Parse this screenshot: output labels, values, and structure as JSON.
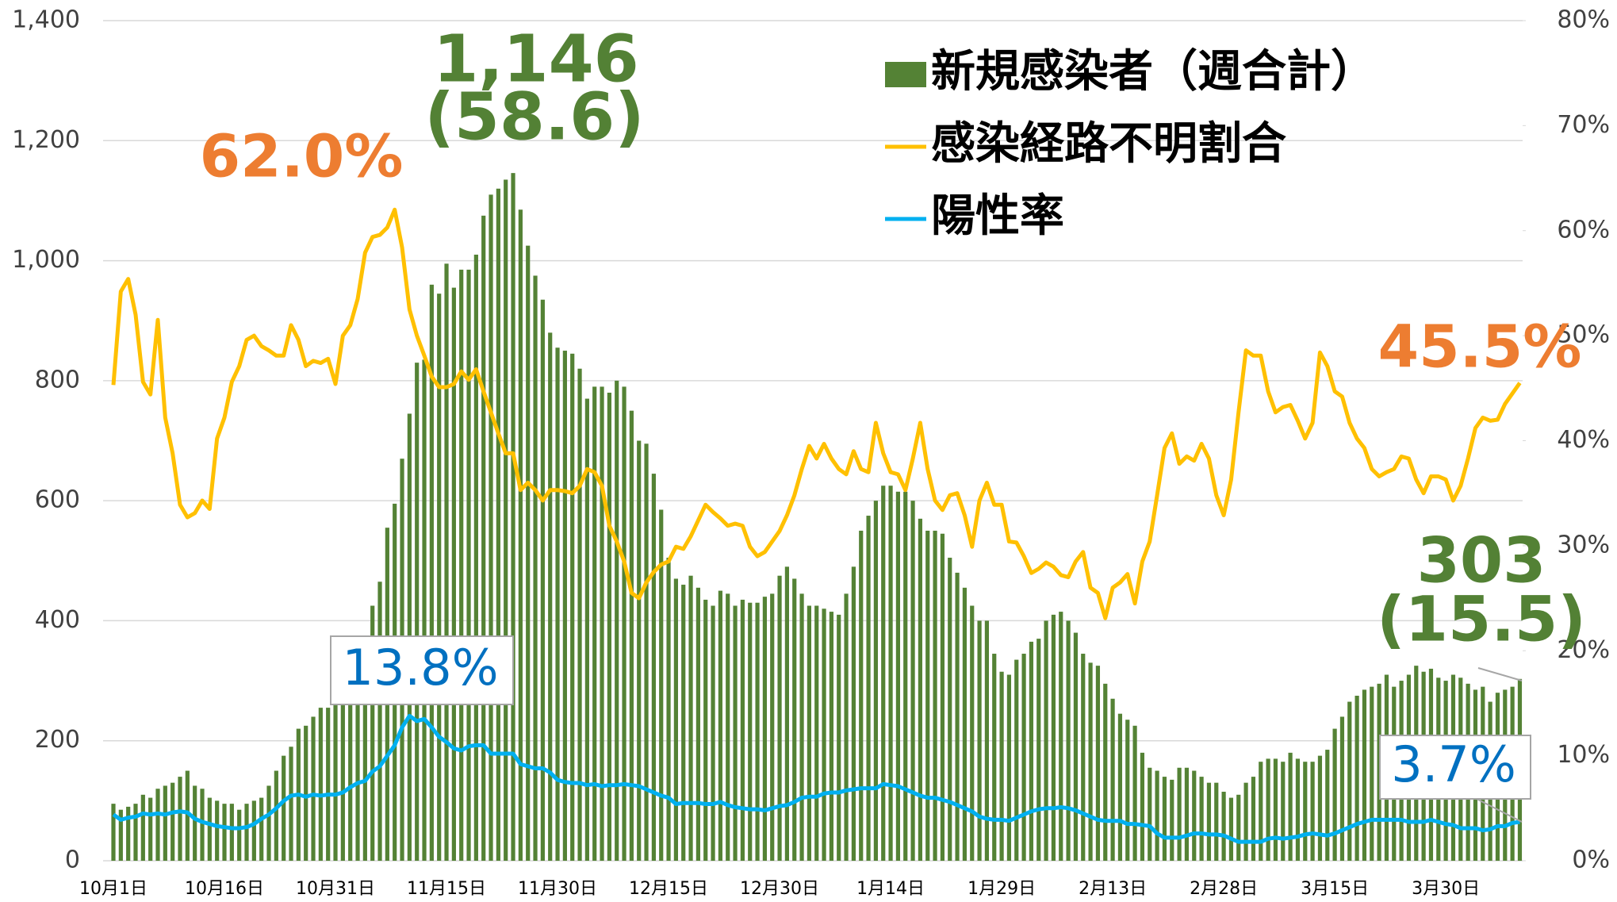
{
  "chart_data": {
    "type": "bar-line",
    "categories": [
      "10月1日",
      null,
      null,
      null,
      null,
      null,
      null,
      null,
      null,
      null,
      null,
      null,
      null,
      null,
      null,
      "10月16日",
      null,
      null,
      null,
      null,
      null,
      null,
      null,
      null,
      null,
      null,
      null,
      null,
      null,
      null,
      "10月31日",
      null,
      null,
      null,
      null,
      null,
      null,
      null,
      null,
      null,
      null,
      null,
      null,
      null,
      null,
      "11月15日",
      null,
      null,
      null,
      null,
      null,
      null,
      null,
      null,
      null,
      null,
      null,
      null,
      null,
      null,
      "11月30日",
      null,
      null,
      null,
      null,
      null,
      null,
      null,
      null,
      null,
      null,
      null,
      null,
      null,
      null,
      "12月15日",
      null,
      null,
      null,
      null,
      null,
      null,
      null,
      null,
      null,
      null,
      null,
      null,
      null,
      null,
      "12月30日",
      null,
      null,
      null,
      null,
      null,
      null,
      null,
      null,
      null,
      null,
      null,
      null,
      null,
      null,
      "1月14日",
      null,
      null,
      null,
      null,
      null,
      null,
      null,
      null,
      null,
      null,
      null,
      null,
      null,
      null,
      "1月29日",
      null,
      null,
      null,
      null,
      null,
      null,
      null,
      null,
      null,
      null,
      null,
      null,
      null,
      null,
      "2月13日",
      null,
      null,
      null,
      null,
      null,
      null,
      null,
      null,
      null,
      null,
      null,
      null,
      null,
      null,
      "2月28日",
      null,
      null,
      null,
      null,
      null,
      null,
      null,
      null,
      null,
      null,
      null,
      null,
      null,
      null,
      "3月15日",
      null,
      null,
      null,
      null,
      null,
      null,
      null,
      null,
      null,
      null,
      null,
      null,
      null,
      null,
      "3月30日",
      null,
      null,
      null,
      null,
      null,
      null,
      null,
      null,
      null,
      null
    ],
    "series": [
      {
        "name": "新規感染者（週合計）",
        "kind": "bar",
        "color": "#548235",
        "values": [
          95,
          85,
          90,
          95,
          110,
          105,
          120,
          125,
          130,
          140,
          150,
          125,
          120,
          105,
          100,
          95,
          95,
          85,
          95,
          100,
          105,
          125,
          150,
          175,
          190,
          220,
          225,
          240,
          255,
          255,
          265,
          280,
          300,
          330,
          370,
          425,
          465,
          555,
          595,
          670,
          745,
          830,
          835,
          960,
          945,
          995,
          955,
          985,
          985,
          1010,
          1075,
          1110,
          1120,
          1135,
          1146,
          1085,
          1025,
          975,
          935,
          880,
          855,
          850,
          845,
          820,
          770,
          790,
          790,
          780,
          800,
          790,
          750,
          700,
          695,
          645,
          585,
          505,
          470,
          460,
          475,
          455,
          435,
          425,
          450,
          445,
          425,
          435,
          430,
          430,
          440,
          445,
          475,
          490,
          470,
          445,
          425,
          425,
          420,
          415,
          410,
          445,
          490,
          550,
          575,
          600,
          625,
          625,
          615,
          615,
          600,
          570,
          550,
          550,
          545,
          505,
          480,
          455,
          425,
          400,
          400,
          345,
          315,
          310,
          335,
          345,
          365,
          370,
          400,
          410,
          415,
          400,
          380,
          345,
          330,
          325,
          295,
          270,
          245,
          235,
          225,
          180,
          155,
          150,
          140,
          135,
          155,
          155,
          150,
          140,
          130,
          130,
          115,
          105,
          110,
          130,
          140,
          165,
          170,
          170,
          165,
          180,
          170,
          165,
          165,
          175,
          185,
          220,
          240,
          265,
          275,
          285,
          290,
          295,
          310,
          290,
          300,
          310,
          325,
          315,
          320,
          305,
          300,
          310,
          305,
          295,
          285,
          290,
          265,
          280,
          285,
          290,
          303
        ]
      },
      {
        "name": "感染経路不明割合",
        "kind": "line",
        "axis": "y2",
        "color": "#FFC000",
        "values": [
          45.3,
          54.2,
          55.4,
          52,
          45.6,
          44.4,
          51.5,
          42.2,
          38.8,
          33.9,
          32.7,
          33.1,
          34.3,
          33.5,
          40.2,
          42.2,
          45.6,
          47.1,
          49.6,
          50,
          49,
          48.6,
          48.1,
          48.1,
          51,
          49.6,
          47.1,
          47.6,
          47.4,
          47.8,
          45.4,
          50,
          51,
          53.5,
          57.9,
          59.4,
          59.6,
          60.3,
          62.0,
          58.4,
          52.5,
          50,
          48.1,
          46.1,
          45.1,
          45.1,
          45.4,
          46.6,
          45.8,
          46.8,
          44.7,
          42.7,
          40.7,
          38.8,
          38.8,
          35.3,
          36,
          35.3,
          34.3,
          35.3,
          35.3,
          35.2,
          35,
          35.7,
          37.3,
          37,
          35.7,
          31.9,
          30.4,
          28.5,
          25.5,
          25,
          26.5,
          27.5,
          28.2,
          28.5,
          29.9,
          29.7,
          30.9,
          32.4,
          33.9,
          33.2,
          32.6,
          31.9,
          32.1,
          31.9,
          29.9,
          29,
          29.4,
          30.4,
          31.4,
          32.9,
          34.8,
          37.3,
          39.5,
          38.3,
          39.7,
          38.3,
          37.3,
          36.8,
          39,
          37.3,
          37,
          41.7,
          38.8,
          37,
          36.8,
          35.3,
          38.3,
          41.7,
          37.3,
          34.3,
          33.4,
          34.8,
          35,
          32.9,
          29.9,
          34.3,
          36,
          33.9,
          33.9,
          30.4,
          30.3,
          29,
          27.4,
          27.8,
          28.4,
          28,
          27.2,
          27,
          28.5,
          29.4,
          26,
          25.5,
          23.1,
          26,
          26.5,
          27.3,
          24.5,
          28.5,
          30.4,
          34.8,
          39.3,
          40.7,
          37.8,
          38.5,
          38.1,
          39.7,
          38.3,
          34.8,
          32.9,
          36.3,
          42.7,
          48.6,
          48.1,
          48.1,
          44.7,
          42.7,
          43.2,
          43.4,
          41.9,
          40.2,
          41.7,
          48.4,
          47.1,
          44.7,
          44.2,
          41.7,
          40.2,
          39.3,
          37.3,
          36.6,
          37,
          37.3,
          38.5,
          38.3,
          36.3,
          35,
          36.6,
          36.6,
          36.3,
          34.3,
          35.7,
          38.3,
          41.2,
          42.2,
          41.9,
          42,
          43.5,
          44.5,
          45.5
        ]
      },
      {
        "name": "陽性率",
        "kind": "line",
        "axis": "y2",
        "color": "#00B0F0",
        "values": [
          4.4,
          3.9,
          4.1,
          4.2,
          4.5,
          4.4,
          4.5,
          4.4,
          4.6,
          4.7,
          4.6,
          4.0,
          3.7,
          3.5,
          3.3,
          3.2,
          3.1,
          3.1,
          3.2,
          3.5,
          4.0,
          4.4,
          5.0,
          5.7,
          6.2,
          6.3,
          6.1,
          6.3,
          6.2,
          6.3,
          6.3,
          6.5,
          7.0,
          7.4,
          7.6,
          8.5,
          9.0,
          10.0,
          11.0,
          12.7,
          13.8,
          13.3,
          13.5,
          12.7,
          11.8,
          11.3,
          10.7,
          10.5,
          10.9,
          11.0,
          11.0,
          10.2,
          10.2,
          10.2,
          10.2,
          9.2,
          9.0,
          8.8,
          8.8,
          8.4,
          7.7,
          7.5,
          7.4,
          7.4,
          7.2,
          7.3,
          7.1,
          7.2,
          7.2,
          7.3,
          7.2,
          7.1,
          6.8,
          6.5,
          6.2,
          6.0,
          5.4,
          5.5,
          5.5,
          5.5,
          5.4,
          5.4,
          5.6,
          5.3,
          5.1,
          5.0,
          4.9,
          4.9,
          4.8,
          5.0,
          5.2,
          5.3,
          5.6,
          6.0,
          6.1,
          6.1,
          6.4,
          6.5,
          6.5,
          6.7,
          6.8,
          6.9,
          6.9,
          6.9,
          7.3,
          7.2,
          7.1,
          6.8,
          6.5,
          6.2,
          6.0,
          6.0,
          5.8,
          5.6,
          5.3,
          5.0,
          4.7,
          4.2,
          4.0,
          3.9,
          3.9,
          3.8,
          4.1,
          4.4,
          4.7,
          4.9,
          5.0,
          5.0,
          5.1,
          5.0,
          4.8,
          4.5,
          4.2,
          3.9,
          3.8,
          3.8,
          3.8,
          3.5,
          3.5,
          3.4,
          3.3,
          2.6,
          2.2,
          2.2,
          2.2,
          2.4,
          2.6,
          2.6,
          2.5,
          2.5,
          2.4,
          2.1,
          1.8,
          1.8,
          1.8,
          1.8,
          2.1,
          2.2,
          2.1,
          2.2,
          2.3,
          2.5,
          2.6,
          2.5,
          2.4,
          2.6,
          2.9,
          3.2,
          3.5,
          3.7,
          3.9,
          3.9,
          3.9,
          3.9,
          3.9,
          3.7,
          3.7,
          3.7,
          3.9,
          3.7,
          3.5,
          3.4,
          3.1,
          3.1,
          3.1,
          2.9,
          3.0,
          3.3,
          3.3,
          3.6,
          3.7
        ]
      }
    ],
    "ylim": [
      0,
      1400
    ],
    "yticks": [
      0,
      200,
      400,
      600,
      800,
      {
        "value": 1000,
        "label": "1,000"
      },
      {
        "value": 1200,
        "label": "1,200"
      },
      {
        "value": 1400,
        "label": "1,400"
      }
    ],
    "y2lim": [
      0,
      80
    ],
    "y2ticks": [
      {
        "value": 0,
        "label": "0%"
      },
      {
        "value": 10,
        "label": "10%"
      },
      {
        "value": 20,
        "label": "20%"
      },
      {
        "value": 30,
        "label": "30%"
      },
      {
        "value": 40,
        "label": "40%"
      },
      {
        "value": 50,
        "label": "50%"
      },
      {
        "value": 60,
        "label": "60%"
      },
      {
        "value": 70,
        "label": "70%"
      },
      {
        "value": 80,
        "label": "80%"
      }
    ],
    "grid": true,
    "legend": "upper right",
    "annotations": [
      {
        "text": "62.0%",
        "color": "#ED7D31"
      },
      {
        "text": "1,146",
        "color": "#538135"
      },
      {
        "text": "(58.6)",
        "color": "#538135"
      },
      {
        "text": "13.8%",
        "color": "#0070C0"
      },
      {
        "text": "45.5%",
        "color": "#ED7D31"
      },
      {
        "text": "303",
        "color": "#538135"
      },
      {
        "text": "(15.5)",
        "color": "#538135"
      },
      {
        "text": "3.7%",
        "color": "#0070C0"
      }
    ]
  }
}
